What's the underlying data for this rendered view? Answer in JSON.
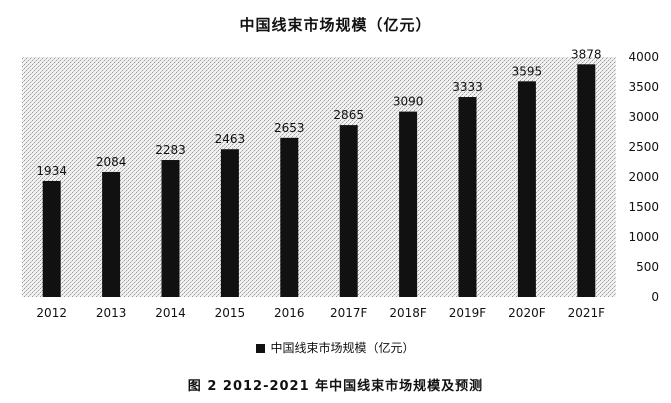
{
  "chart_data": {
    "type": "bar",
    "title": "中国线束市场规模（亿元）",
    "categories": [
      "2012",
      "2013",
      "2014",
      "2015",
      "2016",
      "2017F",
      "2018F",
      "2019F",
      "2020F",
      "2021F"
    ],
    "series": [
      {
        "name": "中国线束市场规模（亿元）",
        "values": [
          1934,
          2084,
          2283,
          2463,
          2653,
          2865,
          3090,
          3333,
          3595,
          3878
        ]
      }
    ],
    "ylim": [
      0,
      4000
    ],
    "yticks": [
      0,
      500,
      1000,
      1500,
      2000,
      2500,
      3000,
      3500,
      4000
    ],
    "y_axis_side": "right",
    "legend_position": "bottom",
    "data_labels": true,
    "bar_color": "#111111"
  },
  "caption": "图 2  2012-2021 年中国线束市场规模及预测"
}
